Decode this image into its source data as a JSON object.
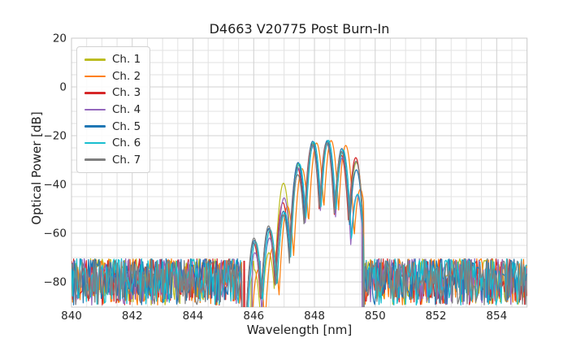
{
  "title": "D4663 V20775 Post Burn-In",
  "chart_data": {
    "type": "line",
    "title": "D4663 V20775 Post Burn-In",
    "xlabel": "Wavelength [nm]",
    "ylabel": "Optical Power [dB]",
    "xlim": [
      840,
      855
    ],
    "ylim": [
      -90.3,
      20
    ],
    "x_major_ticks": [
      840,
      842,
      844,
      846,
      848,
      850,
      852,
      854
    ],
    "y_major_ticks": [
      20,
      0,
      -20,
      -40,
      -60,
      -80
    ],
    "x_minor_step_nm": 0.5,
    "y_minor_step_db": 5,
    "grid": true,
    "legend": {
      "position": "upper-left",
      "entries": [
        "Ch. 1",
        "Ch. 2",
        "Ch. 3",
        "Ch. 4",
        "Ch. 5",
        "Ch. 6",
        "Ch. 7"
      ]
    },
    "colors": {
      "grid_major": "#d0d0d0",
      "grid_minor": "#e2e2e2",
      "spine": "#c8c8c8",
      "text": "#262626"
    },
    "spectrum_model": {
      "mode_centers_nm": [
        846.02,
        846.5,
        846.98,
        847.46,
        847.94,
        848.42,
        848.9,
        849.38
      ],
      "lobe_curvature_db_per_nm2": 480,
      "signal_sample_step_nm": 0.02,
      "noise": {
        "left_region_nm": [
          840.0,
          845.62
        ],
        "right_region_nm": [
          849.62,
          855.0
        ],
        "top_dB": -70.5,
        "span_dB": 19,
        "bias_exp": 1.3,
        "sample_step_nm": 0.035
      },
      "seed": 42
    },
    "series": [
      {
        "name": "Ch. 1",
        "color": "#bcbd22",
        "shift_nm": 0.0,
        "signal_start_nm": 845.9,
        "signal_end_nm": 849.6,
        "mode_peaks_dB": [
          -75.0,
          -68.0,
          -39.5,
          -31.5,
          -23.0,
          -22.2,
          -27.0,
          -31.0
        ],
        "dropout_spikes_nm": [
          845.99
        ]
      },
      {
        "name": "Ch. 2",
        "color": "#ff7f0e",
        "shift_nm": 0.13,
        "signal_start_nm": 845.9,
        "signal_end_nm": 849.62,
        "mode_peaks_dB": [
          -75.0,
          -66.0,
          -49.0,
          -33.5,
          -23.0,
          -22.0,
          -24.0,
          -42.0
        ],
        "dropout_spikes_nm": []
      },
      {
        "name": "Ch. 3",
        "color": "#d62728",
        "shift_nm": -0.02,
        "signal_start_nm": 845.68,
        "signal_end_nm": 849.6,
        "mode_peaks_dB": [
          -64.0,
          -58.5,
          -47.5,
          -33.0,
          -23.5,
          -22.8,
          -28.0,
          -29.0
        ],
        "dropout_spikes_nm": [
          845.69
        ]
      },
      {
        "name": "Ch. 4",
        "color": "#9467bd",
        "shift_nm": 0.02,
        "signal_start_nm": 845.95,
        "signal_end_nm": 849.56,
        "mode_peaks_dB": [
          -68.0,
          -62.0,
          -45.5,
          -33.5,
          -24.2,
          -23.3,
          -29.0,
          -44.5
        ],
        "dropout_spikes_nm": [
          846.2
        ]
      },
      {
        "name": "Ch. 5",
        "color": "#1f77b4",
        "shift_nm": 0.0,
        "signal_start_nm": 845.5,
        "signal_end_nm": 849.6,
        "mode_peaks_dB": [
          -63.0,
          -58.0,
          -51.0,
          -31.0,
          -22.3,
          -22.0,
          -25.3,
          -34.0
        ],
        "dropout_spikes_nm": []
      },
      {
        "name": "Ch. 6",
        "color": "#17becf",
        "shift_nm": 0.04,
        "signal_start_nm": 845.5,
        "signal_end_nm": 849.63,
        "mode_peaks_dB": [
          -63.5,
          -58.5,
          -51.5,
          -31.5,
          -22.6,
          -21.9,
          -25.8,
          -44.0
        ],
        "dropout_spikes_nm": []
      },
      {
        "name": "Ch. 7",
        "color": "#7f7f7f",
        "shift_nm": -0.01,
        "signal_start_nm": 845.5,
        "signal_end_nm": 849.6,
        "mode_peaks_dB": [
          -62.0,
          -57.0,
          -52.5,
          -36.0,
          -23.8,
          -23.0,
          -26.5,
          -30.5
        ],
        "dropout_spikes_nm": []
      }
    ]
  }
}
